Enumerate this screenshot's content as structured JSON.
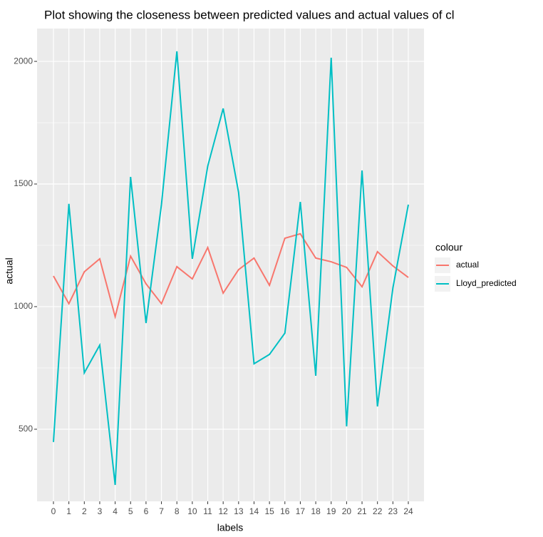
{
  "chart_data": {
    "type": "line",
    "title": "Plot showing the closeness between predicted values and actual values of cl",
    "x_label": "labels",
    "y_label": "actual",
    "legend_title": "colour",
    "categories": [
      "0",
      "1",
      "2",
      "3",
      "4",
      "5",
      "6",
      "7",
      "8",
      "10",
      "11",
      "12",
      "13",
      "14",
      "15",
      "16",
      "17",
      "18",
      "19",
      "20",
      "21",
      "22",
      "23",
      "24"
    ],
    "series": [
      {
        "name": "actual",
        "color": "#F8766D",
        "values": [
          1125,
          1012,
          1142,
          1195,
          959,
          1206,
          1093,
          1012,
          1163,
          1113,
          1241,
          1055,
          1151,
          1198,
          1087,
          1279,
          1297,
          1198,
          1183,
          1160,
          1081,
          1224,
          1166,
          1119
        ]
      },
      {
        "name": "Lloyd_predicted",
        "color": "#00BFC4",
        "values": [
          448,
          1419,
          730,
          843,
          273,
          1529,
          933,
          1416,
          2041,
          1195,
          1573,
          1808,
          1465,
          767,
          805,
          892,
          1427,
          718,
          2015,
          512,
          1555,
          593,
          1076,
          1416
        ]
      }
    ],
    "ylim": [
      206,
      2134
    ],
    "yticks": [
      500,
      1000,
      1500,
      2000
    ],
    "grid": true,
    "legend": "right"
  }
}
